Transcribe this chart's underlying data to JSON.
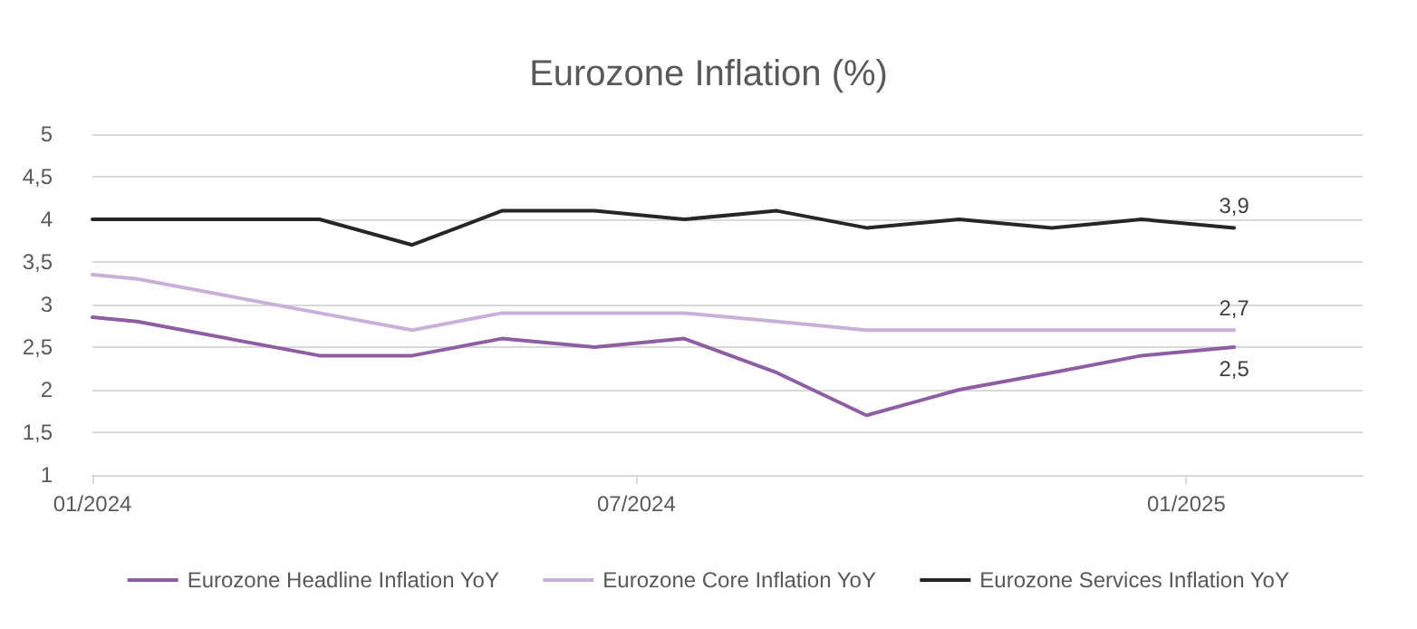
{
  "chart_data": {
    "type": "line",
    "title": "Eurozone Inflation (%)",
    "x": [
      "2024-01-01",
      "2024-01-16",
      "2024-03-17",
      "2024-04-17",
      "2024-05-17",
      "2024-06-17",
      "2024-07-17",
      "2024-08-17",
      "2024-09-16",
      "2024-10-17",
      "2024-11-17",
      "2024-12-17",
      "2025-01-17"
    ],
    "series": [
      {
        "name": "Eurozone Headline Inflation YoY",
        "color": "#8e5ea2",
        "values": [
          2.85,
          2.8,
          2.4,
          2.4,
          2.6,
          2.5,
          2.6,
          2.2,
          1.7,
          2.0,
          2.2,
          2.4,
          2.5
        ],
        "value_labels": [
          null,
          null,
          null,
          null,
          null,
          null,
          null,
          null,
          null,
          null,
          null,
          null,
          "2,5"
        ]
      },
      {
        "name": "Eurozone Core Inflation YoY",
        "color": "#c9b0d8",
        "values": [
          3.35,
          3.3,
          2.9,
          2.7,
          2.9,
          2.9,
          2.9,
          2.8,
          2.7,
          2.7,
          2.7,
          2.7,
          2.7
        ],
        "value_labels": [
          null,
          null,
          null,
          null,
          null,
          null,
          null,
          null,
          null,
          null,
          null,
          null,
          "2,7"
        ]
      },
      {
        "name": "Eurozone Services Inflation YoY",
        "color": "#262626",
        "values": [
          4.0,
          4.0,
          4.0,
          3.7,
          4.1,
          4.1,
          4.0,
          4.1,
          3.9,
          4.0,
          3.9,
          4.0,
          3.9
        ],
        "value_labels": [
          null,
          null,
          null,
          null,
          null,
          null,
          null,
          null,
          null,
          null,
          null,
          null,
          "3,9"
        ]
      }
    ],
    "xlim": [
      "2024-01-01",
      "2025-03-01"
    ],
    "xticks": [
      {
        "value": "2024-01-01",
        "label": "01/2024"
      },
      {
        "value": "2024-07-01",
        "label": "07/2024"
      },
      {
        "value": "2025-01-01",
        "label": "01/2025"
      }
    ],
    "ylim": [
      1,
      5
    ],
    "yticks": [
      1,
      {
        "value": 1.5,
        "label": "1,5"
      },
      2,
      {
        "value": 2.5,
        "label": "2,5"
      },
      3,
      {
        "value": 3.5,
        "label": "3,5"
      },
      4,
      {
        "value": 4.5,
        "label": "4,5"
      },
      5
    ],
    "grid": "y",
    "legend": "bottom",
    "marker": "none",
    "line_style": "solid"
  }
}
